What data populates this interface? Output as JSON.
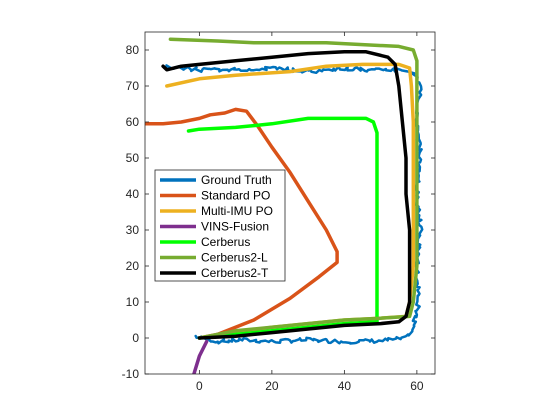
{
  "chart_data": {
    "type": "line",
    "title": "",
    "xlabel": "",
    "ylabel": "",
    "xlim": [
      -15,
      65
    ],
    "ylim": [
      -10,
      85
    ],
    "x_ticks": [
      0,
      20,
      40,
      60
    ],
    "y_ticks": [
      -10,
      0,
      10,
      20,
      30,
      40,
      50,
      60,
      70,
      80
    ],
    "grid": false,
    "legend_position": "left-center",
    "series": [
      {
        "name": "Ground Truth",
        "color": "#0072BD",
        "noise": 0.7,
        "points": [
          [
            -1,
            0.5
          ],
          [
            5,
            -1
          ],
          [
            12,
            -0.5
          ],
          [
            20,
            -1
          ],
          [
            30,
            -0.5
          ],
          [
            40,
            -1
          ],
          [
            50,
            -0.8
          ],
          [
            57,
            0
          ],
          [
            59,
            3
          ],
          [
            60.5,
            10
          ],
          [
            60,
            20
          ],
          [
            61,
            30
          ],
          [
            60,
            40
          ],
          [
            61,
            50
          ],
          [
            60,
            60
          ],
          [
            61,
            70
          ],
          [
            59,
            74
          ],
          [
            55,
            74.5
          ],
          [
            45,
            74.5
          ],
          [
            40,
            75
          ],
          [
            30,
            74
          ],
          [
            20,
            75
          ],
          [
            10,
            74.5
          ],
          [
            0,
            74.5
          ],
          [
            -10,
            75.5
          ]
        ]
      },
      {
        "name": "Standard PO",
        "color": "#D95319",
        "noise": 0,
        "points": [
          [
            0,
            0
          ],
          [
            5,
            1
          ],
          [
            15,
            5
          ],
          [
            25,
            11
          ],
          [
            33,
            17
          ],
          [
            38,
            21
          ],
          [
            38,
            24
          ],
          [
            35,
            30
          ],
          [
            30,
            38
          ],
          [
            25,
            46
          ],
          [
            20,
            53
          ],
          [
            16,
            59
          ],
          [
            13,
            63
          ],
          [
            10,
            63.5
          ],
          [
            7,
            62.5
          ],
          [
            3,
            62
          ],
          [
            0,
            61
          ],
          [
            -5,
            60
          ],
          [
            -10,
            59.5
          ],
          [
            -15,
            59.5
          ]
        ]
      },
      {
        "name": "Multi-IMU PO",
        "color": "#EDB120",
        "noise": 0,
        "points": [
          [
            0,
            0
          ],
          [
            10,
            1.5
          ],
          [
            20,
            3
          ],
          [
            30,
            4
          ],
          [
            40,
            5
          ],
          [
            50,
            5.5
          ],
          [
            57,
            6
          ],
          [
            58,
            10
          ],
          [
            59,
            20
          ],
          [
            59,
            30
          ],
          [
            59,
            40
          ],
          [
            59,
            50
          ],
          [
            59,
            60
          ],
          [
            58.5,
            70
          ],
          [
            58,
            75
          ],
          [
            55,
            76
          ],
          [
            45,
            76
          ],
          [
            35,
            75.5
          ],
          [
            25,
            74
          ],
          [
            10,
            73
          ],
          [
            0,
            72
          ],
          [
            -9,
            70
          ]
        ]
      },
      {
        "name": "VINS-Fusion",
        "color": "#7E2F8E",
        "noise": 0,
        "points": [
          [
            2,
            -1
          ],
          [
            0,
            -5
          ],
          [
            -1.5,
            -10
          ]
        ]
      },
      {
        "name": "Cerberus",
        "color": "#00FF00",
        "noise": 0,
        "points": [
          [
            0,
            0
          ],
          [
            10,
            1
          ],
          [
            20,
            2
          ],
          [
            30,
            3
          ],
          [
            40,
            4
          ],
          [
            49,
            4.5
          ],
          [
            49,
            20
          ],
          [
            49,
            40
          ],
          [
            49,
            57
          ],
          [
            48,
            60
          ],
          [
            46,
            61
          ],
          [
            40,
            61
          ],
          [
            30,
            61
          ],
          [
            20,
            59.5
          ],
          [
            10,
            58.5
          ],
          [
            0,
            58
          ],
          [
            -3,
            57.5
          ]
        ]
      },
      {
        "name": "Cerberus2-L",
        "color": "#77AC30",
        "noise": 0,
        "points": [
          [
            0,
            0
          ],
          [
            10,
            2
          ],
          [
            20,
            3
          ],
          [
            30,
            4
          ],
          [
            40,
            5
          ],
          [
            50,
            5.5
          ],
          [
            58,
            6
          ],
          [
            59,
            10
          ],
          [
            60,
            20
          ],
          [
            60,
            30
          ],
          [
            60,
            40
          ],
          [
            60,
            50
          ],
          [
            60,
            60
          ],
          [
            60,
            70
          ],
          [
            60,
            77
          ],
          [
            59,
            80
          ],
          [
            55,
            81
          ],
          [
            45,
            81.5
          ],
          [
            35,
            82
          ],
          [
            25,
            82
          ],
          [
            15,
            82
          ],
          [
            5,
            82.5
          ],
          [
            -8,
            83
          ]
        ]
      },
      {
        "name": "Cerberus2-T",
        "color": "#000000",
        "noise": 0,
        "points": [
          [
            0,
            0
          ],
          [
            10,
            0.5
          ],
          [
            20,
            1.5
          ],
          [
            30,
            2.5
          ],
          [
            40,
            3.5
          ],
          [
            50,
            4
          ],
          [
            55,
            4.5
          ],
          [
            57,
            6
          ],
          [
            58,
            10
          ],
          [
            58,
            20
          ],
          [
            58,
            30
          ],
          [
            57,
            40
          ],
          [
            57,
            50
          ],
          [
            56,
            60
          ],
          [
            55,
            70
          ],
          [
            54,
            76
          ],
          [
            52,
            78
          ],
          [
            46,
            79.5
          ],
          [
            40,
            79.5
          ],
          [
            30,
            79
          ],
          [
            20,
            78
          ],
          [
            10,
            77
          ],
          [
            0,
            76
          ],
          [
            -5,
            75.5
          ],
          [
            -9,
            74.5
          ],
          [
            -10,
            75.5
          ]
        ]
      }
    ]
  }
}
